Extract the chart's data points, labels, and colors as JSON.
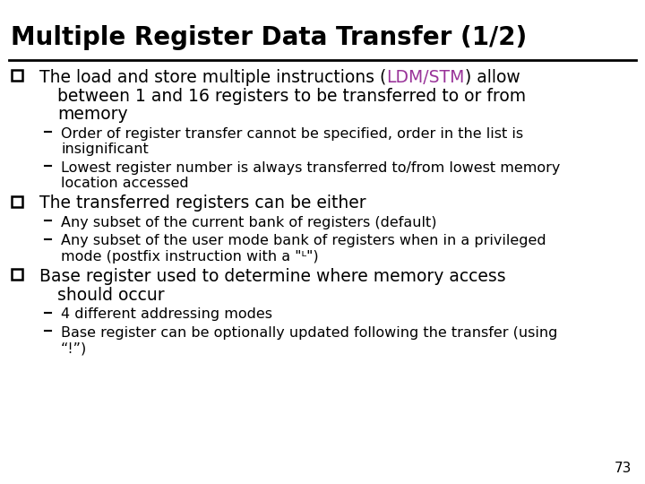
{
  "title": "Multiple Register Data Transfer (1/2)",
  "background_color": "#ffffff",
  "title_color": "#000000",
  "title_fontsize": 20,
  "line_color": "#000000",
  "body_fontsize": 13.5,
  "sub_fontsize": 11.5,
  "highlight_color": "#993399",
  "page_number": "73",
  "content": [
    {
      "type": "main",
      "lines": [
        [
          {
            "text": "The load and store multiple instructions (",
            "color": "#000000"
          },
          {
            "text": "LDM/STM",
            "color": "#993399"
          },
          {
            "text": ") allow",
            "color": "#000000"
          }
        ],
        [
          {
            "text": "between 1 and 16 registers to be transferred to or from",
            "color": "#000000"
          }
        ],
        [
          {
            "text": "memory",
            "color": "#000000"
          }
        ]
      ]
    },
    {
      "type": "sub",
      "lines": [
        [
          {
            "text": "Order of register transfer cannot be specified, order in the list is",
            "color": "#000000"
          }
        ],
        [
          {
            "text": "insignificant",
            "color": "#000000"
          }
        ]
      ]
    },
    {
      "type": "sub",
      "lines": [
        [
          {
            "text": "Lowest register number is always transferred to/from lowest memory",
            "color": "#000000"
          }
        ],
        [
          {
            "text": "location accessed",
            "color": "#000000"
          }
        ]
      ]
    },
    {
      "type": "main",
      "lines": [
        [
          {
            "text": "The transferred registers can be either",
            "color": "#000000"
          }
        ]
      ]
    },
    {
      "type": "sub",
      "lines": [
        [
          {
            "text": "Any subset of the current bank of registers (default)",
            "color": "#000000"
          }
        ]
      ]
    },
    {
      "type": "sub",
      "lines": [
        [
          {
            "text": "Any subset of the user mode bank of registers when in a privileged",
            "color": "#000000"
          }
        ],
        [
          {
            "text": "mode (postfix instruction with a \"ᴸ\")",
            "color": "#000000"
          }
        ]
      ]
    },
    {
      "type": "main",
      "lines": [
        [
          {
            "text": "Base register used to determine where memory access",
            "color": "#000000"
          }
        ],
        [
          {
            "text": "should occur",
            "color": "#000000"
          }
        ]
      ]
    },
    {
      "type": "sub",
      "lines": [
        [
          {
            "text": "4 different addressing modes",
            "color": "#000000"
          }
        ]
      ]
    },
    {
      "type": "sub",
      "lines": [
        [
          {
            "text": "Base register can be optionally updated following the transfer (using",
            "color": "#000000"
          }
        ],
        [
          {
            "text": "“!”)",
            "color": "#000000"
          }
        ]
      ]
    }
  ]
}
